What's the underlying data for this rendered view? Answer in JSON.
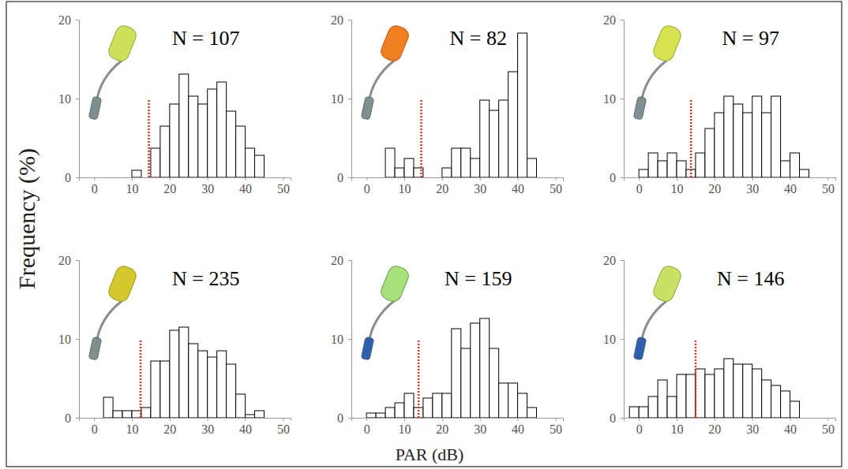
{
  "x_label": "PAR (dB)",
  "y_label": "Frequency (%)",
  "chart_data": [
    {
      "type": "histogram",
      "annotation": "N = 107",
      "color": "#ffffff",
      "bins": [
        -2.5,
        0,
        2.5,
        5,
        7.5,
        10,
        12.5,
        15,
        17.5,
        20,
        22.5,
        25,
        27.5,
        30,
        32.5,
        35,
        37.5,
        40,
        42.5,
        45
      ],
      "values": [
        0,
        0,
        0,
        0,
        0,
        0.9,
        0,
        3.7,
        6.5,
        9.3,
        13.1,
        10.3,
        9.3,
        11.2,
        12.1,
        8.4,
        6.5,
        3.7,
        2.8
      ],
      "threshold": {
        "x": 14.5,
        "top": 10
      },
      "xlim": [
        -4,
        52
      ],
      "xticks": [
        0,
        10,
        20,
        30,
        40,
        50
      ],
      "ylim": [
        0,
        20
      ],
      "yticks": [
        0,
        10,
        20
      ]
    },
    {
      "type": "histogram",
      "annotation": "N = 82",
      "color": "#ffffff",
      "bins": [
        -2.5,
        0,
        2.5,
        5,
        7.5,
        10,
        12.5,
        15,
        17.5,
        20,
        22.5,
        25,
        27.5,
        30,
        32.5,
        35,
        37.5,
        40,
        42.5,
        45
      ],
      "values": [
        0,
        0,
        0,
        3.7,
        1.2,
        2.4,
        1.2,
        0,
        0,
        1.2,
        3.7,
        3.7,
        2.4,
        9.8,
        8.5,
        9.8,
        13.4,
        18.3,
        2.4
      ],
      "threshold": {
        "x": 14.5,
        "top": 10
      },
      "xlim": [
        -4,
        52
      ],
      "xticks": [
        0,
        10,
        20,
        30,
        40,
        50
      ],
      "ylim": [
        0,
        20
      ],
      "yticks": [
        0,
        10,
        20
      ]
    },
    {
      "type": "histogram",
      "annotation": "N = 97",
      "color": "#ffffff",
      "bins": [
        -2.5,
        0,
        2.5,
        5,
        7.5,
        10,
        12.5,
        15,
        17.5,
        20,
        22.5,
        25,
        27.5,
        30,
        32.5,
        35,
        37.5,
        40,
        42.5,
        45
      ],
      "values": [
        0,
        1.0,
        3.1,
        2.1,
        3.1,
        2.1,
        1.0,
        3.1,
        6.2,
        8.2,
        10.3,
        9.3,
        8.2,
        10.3,
        8.2,
        10.3,
        2.1,
        3.1,
        1.0
      ],
      "threshold": {
        "x": 13.8,
        "top": 10
      },
      "xlim": [
        -4,
        52
      ],
      "xticks": [
        0,
        10,
        20,
        30,
        40,
        50
      ],
      "ylim": [
        0,
        20
      ],
      "yticks": [
        0,
        10,
        20
      ]
    },
    {
      "type": "histogram",
      "annotation": "N = 235",
      "color": "#ffffff",
      "bins": [
        -2.5,
        0,
        2.5,
        5,
        7.5,
        10,
        12.5,
        15,
        17.5,
        20,
        22.5,
        25,
        27.5,
        30,
        32.5,
        35,
        37.5,
        40,
        42.5,
        45
      ],
      "values": [
        0,
        0,
        2.6,
        0.9,
        0.9,
        0.9,
        1.3,
        7.2,
        7.2,
        11.1,
        11.5,
        9.4,
        8.5,
        7.7,
        8.5,
        6.8,
        3.0,
        0.4,
        0.9
      ],
      "threshold": {
        "x": 12.3,
        "top": 10
      },
      "xlim": [
        -4,
        52
      ],
      "xticks": [
        0,
        10,
        20,
        30,
        40,
        50
      ],
      "ylim": [
        0,
        20
      ],
      "yticks": [
        0,
        10,
        20
      ]
    },
    {
      "type": "histogram",
      "annotation": "N = 159",
      "color": "#ffffff",
      "bins": [
        -2.5,
        0,
        2.5,
        5,
        7.5,
        10,
        12.5,
        15,
        17.5,
        20,
        22.5,
        25,
        27.5,
        30,
        32.5,
        35,
        37.5,
        40,
        42.5,
        45
      ],
      "values": [
        0,
        0.6,
        0.6,
        1.3,
        1.9,
        3.1,
        1.3,
        2.5,
        3.1,
        3.1,
        11.3,
        8.8,
        12.0,
        12.6,
        8.8,
        4.4,
        4.4,
        3.1,
        1.3
      ],
      "threshold": {
        "x": 13.8,
        "top": 10
      },
      "xlim": [
        -4,
        52
      ],
      "xticks": [
        0,
        10,
        20,
        30,
        40,
        50
      ],
      "ylim": [
        0,
        20
      ],
      "yticks": [
        0,
        10,
        20
      ]
    },
    {
      "type": "histogram",
      "annotation": "N = 146",
      "color": "#ffffff",
      "bins": [
        -2.5,
        0,
        2.5,
        5,
        7.5,
        10,
        12.5,
        15,
        17.5,
        20,
        22.5,
        25,
        27.5,
        30,
        32.5,
        35,
        37.5,
        40,
        42.5,
        45
      ],
      "values": [
        1.4,
        1.4,
        2.7,
        4.8,
        2.7,
        5.5,
        5.5,
        6.2,
        5.5,
        6.2,
        7.5,
        6.8,
        6.8,
        6.2,
        4.8,
        4.1,
        3.4,
        2.1,
        0
      ],
      "threshold": {
        "x": 15.0,
        "top": 10
      },
      "xlim": [
        -4,
        52
      ],
      "xticks": [
        0,
        10,
        20,
        30,
        40,
        50
      ],
      "ylim": [
        0,
        20
      ],
      "yticks": [
        0,
        10,
        20
      ]
    }
  ]
}
